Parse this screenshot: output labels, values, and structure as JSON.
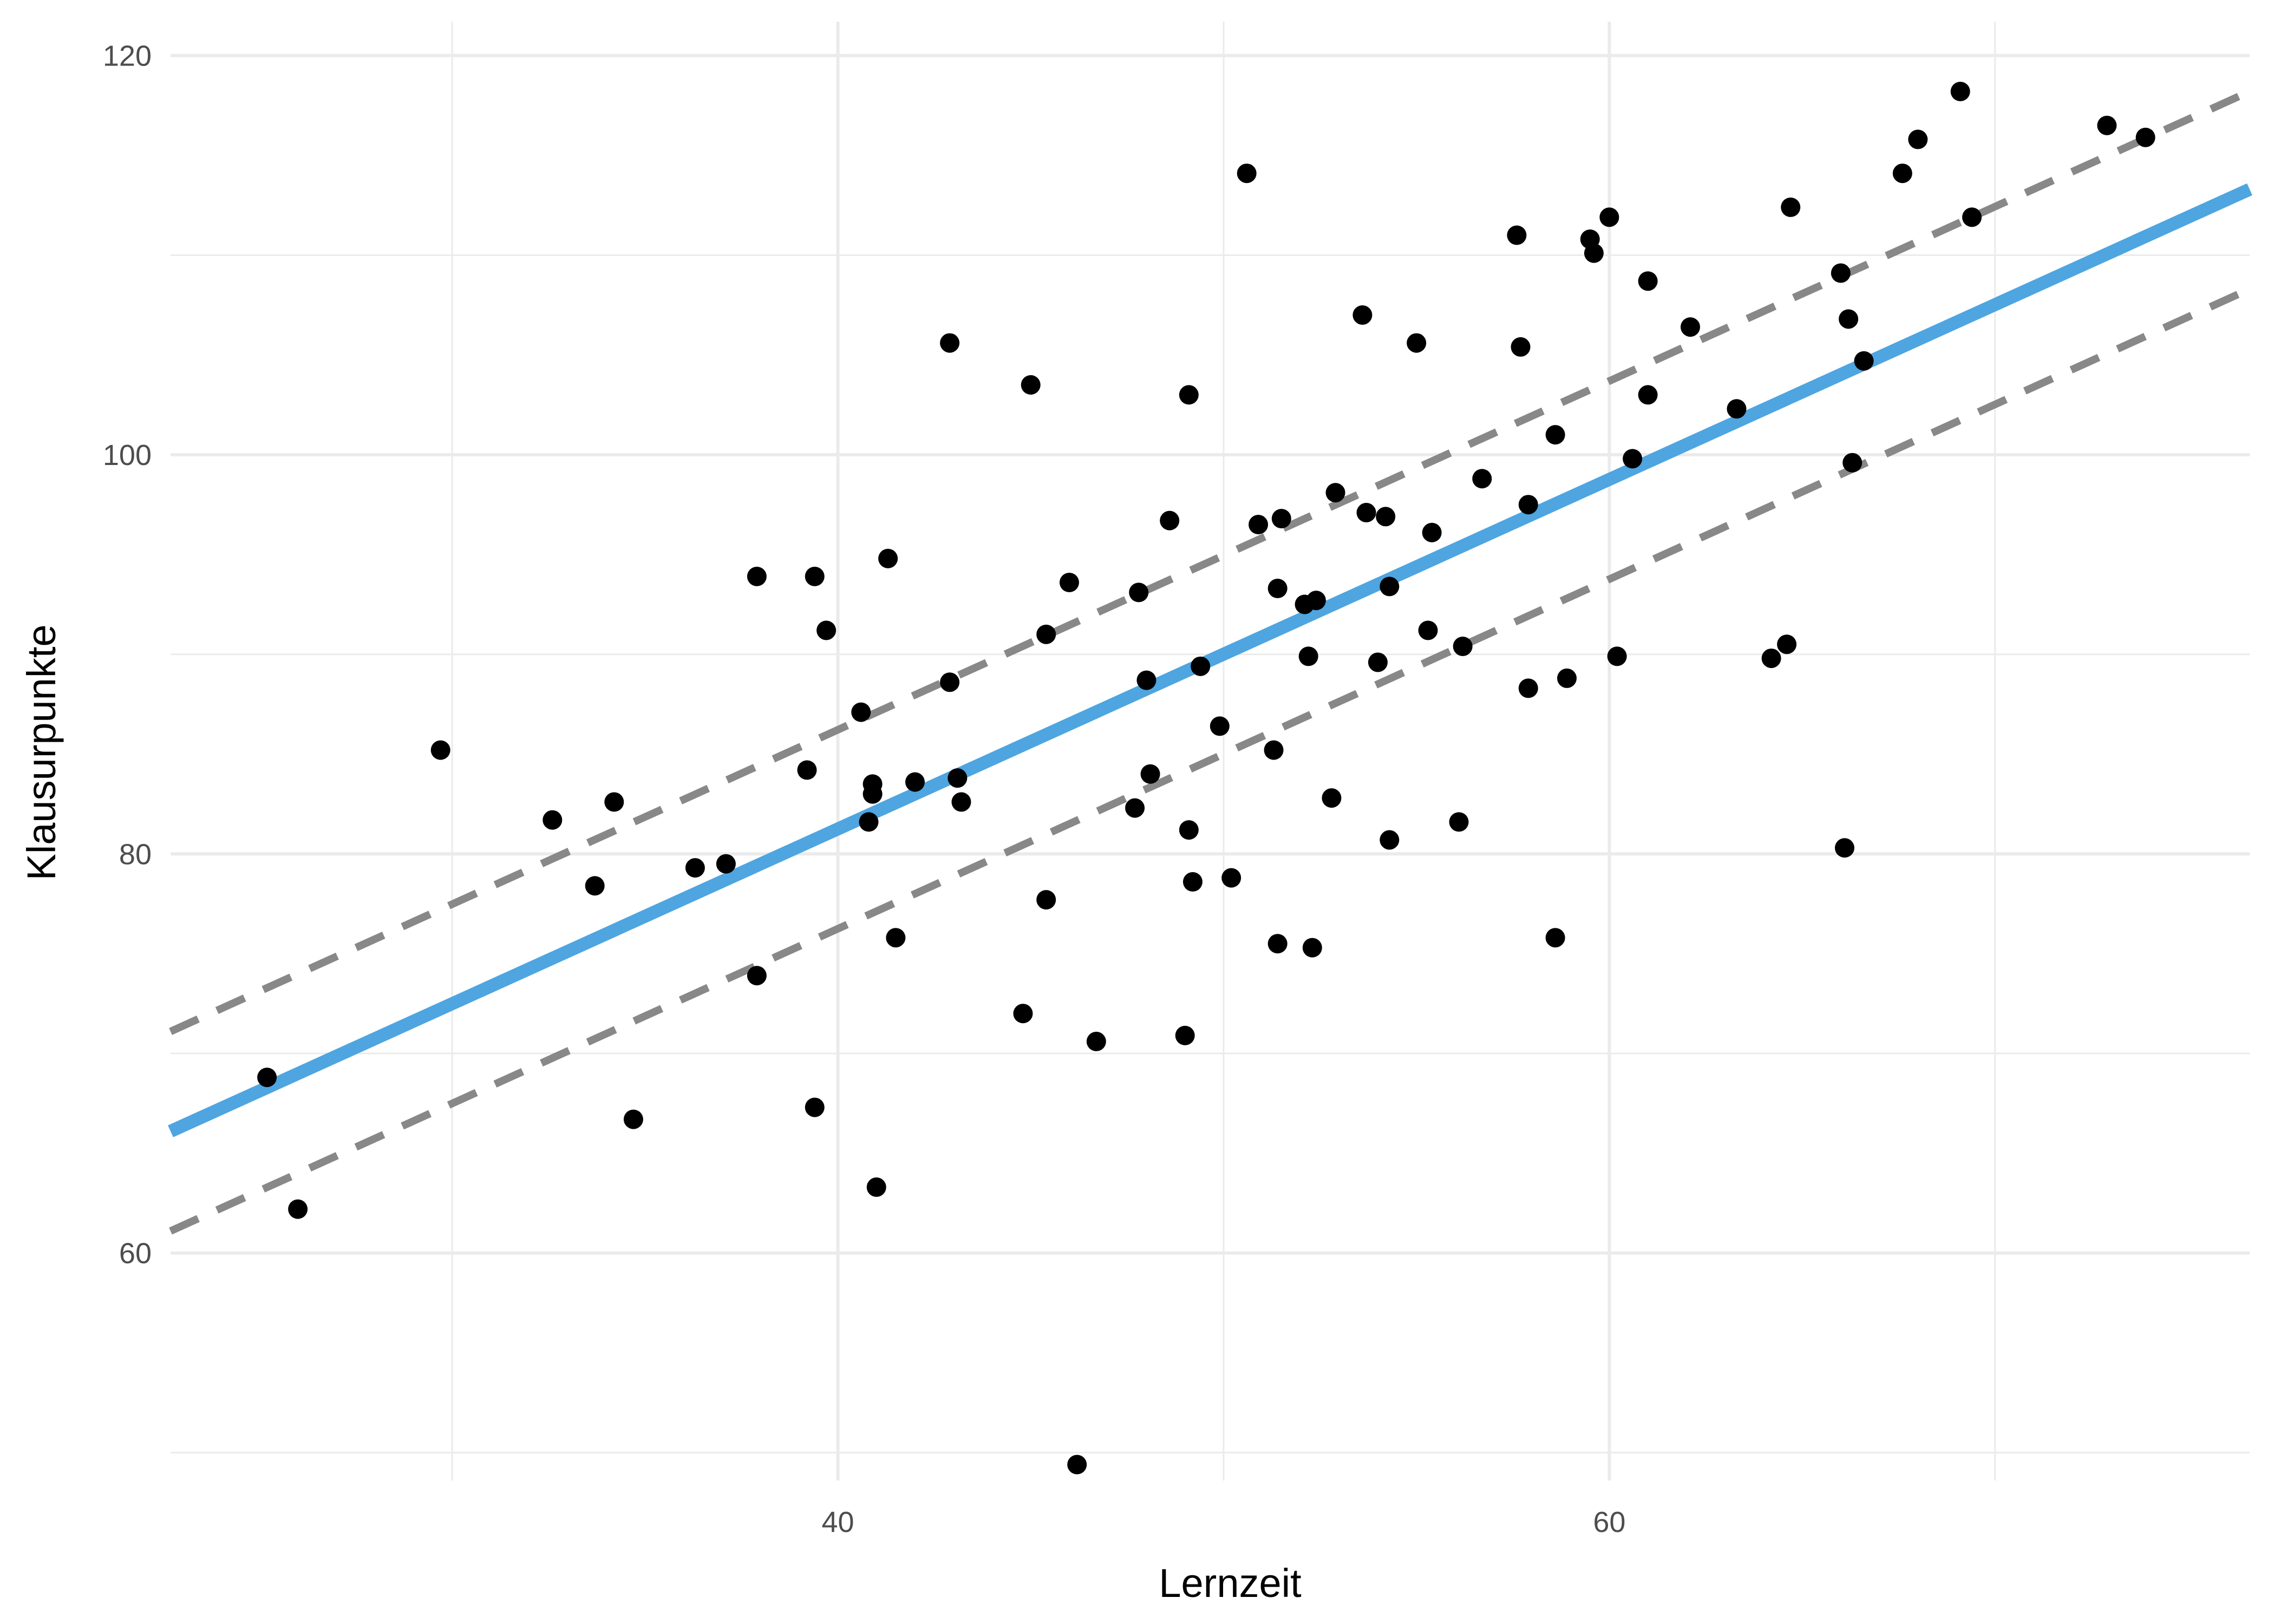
{
  "chart_data": {
    "type": "scatter",
    "title": "",
    "xlabel": "Lernzeit",
    "ylabel": "Klausurpunkte",
    "xlim": [
      22.7,
      76.6
    ],
    "ylim": [
      48.6,
      121.7
    ],
    "x_ticks": [
      40,
      60
    ],
    "x_minor_ticks": [
      30,
      50,
      70
    ],
    "y_ticks": [
      60,
      80,
      100,
      120
    ],
    "y_minor_ticks": [
      50,
      70,
      90,
      110
    ],
    "grid": true,
    "legend": "none",
    "colors": {
      "points": "#000000",
      "fit_line": "#4ea5e0",
      "interval_lines": "#888888"
    },
    "fit_line": {
      "style": "solid",
      "x": [
        22.7,
        76.6
      ],
      "y": [
        66.1,
        113.3
      ]
    },
    "interval_lines": [
      {
        "style": "dashed",
        "x": [
          22.7,
          76.6
        ],
        "y": [
          71.1,
          118.2
        ]
      },
      {
        "style": "dashed",
        "x": [
          22.7,
          76.6
        ],
        "y": [
          61.1,
          108.3
        ]
      }
    ],
    "points": [
      {
        "x": 25.2,
        "y": 68.8
      },
      {
        "x": 26.0,
        "y": 62.2
      },
      {
        "x": 29.7,
        "y": 85.2
      },
      {
        "x": 32.6,
        "y": 81.7
      },
      {
        "x": 33.7,
        "y": 78.4
      },
      {
        "x": 34.2,
        "y": 82.6
      },
      {
        "x": 34.7,
        "y": 66.7
      },
      {
        "x": 36.3,
        "y": 79.3
      },
      {
        "x": 37.1,
        "y": 79.5
      },
      {
        "x": 37.9,
        "y": 73.9
      },
      {
        "x": 37.9,
        "y": 93.9
      },
      {
        "x": 39.2,
        "y": 84.2
      },
      {
        "x": 39.4,
        "y": 93.9
      },
      {
        "x": 39.4,
        "y": 67.3
      },
      {
        "x": 39.7,
        "y": 91.2
      },
      {
        "x": 40.6,
        "y": 87.1
      },
      {
        "x": 40.8,
        "y": 81.6
      },
      {
        "x": 40.9,
        "y": 83.5
      },
      {
        "x": 40.9,
        "y": 83.0
      },
      {
        "x": 41.0,
        "y": 63.3
      },
      {
        "x": 41.3,
        "y": 94.8
      },
      {
        "x": 41.5,
        "y": 75.8
      },
      {
        "x": 42.0,
        "y": 83.6
      },
      {
        "x": 42.9,
        "y": 88.6
      },
      {
        "x": 42.9,
        "y": 105.6
      },
      {
        "x": 43.1,
        "y": 83.8
      },
      {
        "x": 43.2,
        "y": 82.6
      },
      {
        "x": 44.8,
        "y": 72.0
      },
      {
        "x": 45.0,
        "y": 103.5
      },
      {
        "x": 45.4,
        "y": 91.0
      },
      {
        "x": 45.4,
        "y": 77.7
      },
      {
        "x": 46.0,
        "y": 93.6
      },
      {
        "x": 46.2,
        "y": 49.4
      },
      {
        "x": 46.7,
        "y": 70.6
      },
      {
        "x": 47.7,
        "y": 82.3
      },
      {
        "x": 47.8,
        "y": 93.1
      },
      {
        "x": 48.0,
        "y": 88.7
      },
      {
        "x": 48.1,
        "y": 84.0
      },
      {
        "x": 48.6,
        "y": 96.7
      },
      {
        "x": 49.0,
        "y": 70.9
      },
      {
        "x": 49.1,
        "y": 81.2
      },
      {
        "x": 49.1,
        "y": 103.0
      },
      {
        "x": 49.2,
        "y": 78.6
      },
      {
        "x": 49.4,
        "y": 89.4
      },
      {
        "x": 49.9,
        "y": 86.4
      },
      {
        "x": 50.2,
        "y": 78.8
      },
      {
        "x": 50.6,
        "y": 114.1
      },
      {
        "x": 50.9,
        "y": 96.5
      },
      {
        "x": 51.3,
        "y": 85.2
      },
      {
        "x": 51.4,
        "y": 93.3
      },
      {
        "x": 51.4,
        "y": 75.5
      },
      {
        "x": 51.5,
        "y": 96.8
      },
      {
        "x": 52.1,
        "y": 92.5
      },
      {
        "x": 52.2,
        "y": 89.9
      },
      {
        "x": 52.3,
        "y": 75.3
      },
      {
        "x": 52.4,
        "y": 92.7
      },
      {
        "x": 52.8,
        "y": 82.8
      },
      {
        "x": 52.9,
        "y": 98.1
      },
      {
        "x": 53.6,
        "y": 107.0
      },
      {
        "x": 53.7,
        "y": 97.1
      },
      {
        "x": 54.0,
        "y": 89.6
      },
      {
        "x": 54.2,
        "y": 96.9
      },
      {
        "x": 54.3,
        "y": 93.4
      },
      {
        "x": 54.3,
        "y": 80.7
      },
      {
        "x": 55.0,
        "y": 105.6
      },
      {
        "x": 55.3,
        "y": 91.2
      },
      {
        "x": 55.4,
        "y": 96.1
      },
      {
        "x": 56.1,
        "y": 81.6
      },
      {
        "x": 56.2,
        "y": 90.4
      },
      {
        "x": 56.7,
        "y": 98.8
      },
      {
        "x": 57.6,
        "y": 111.0
      },
      {
        "x": 57.7,
        "y": 105.4
      },
      {
        "x": 57.9,
        "y": 97.5
      },
      {
        "x": 57.9,
        "y": 88.3
      },
      {
        "x": 58.6,
        "y": 101.0
      },
      {
        "x": 58.6,
        "y": 75.8
      },
      {
        "x": 58.9,
        "y": 88.8
      },
      {
        "x": 59.5,
        "y": 110.8
      },
      {
        "x": 59.6,
        "y": 110.1
      },
      {
        "x": 60.0,
        "y": 111.9
      },
      {
        "x": 60.2,
        "y": 89.9
      },
      {
        "x": 60.6,
        "y": 99.8
      },
      {
        "x": 61.0,
        "y": 108.7
      },
      {
        "x": 61.0,
        "y": 103.0
      },
      {
        "x": 62.1,
        "y": 106.4
      },
      {
        "x": 63.3,
        "y": 102.3
      },
      {
        "x": 64.2,
        "y": 89.8
      },
      {
        "x": 64.6,
        "y": 90.5
      },
      {
        "x": 64.7,
        "y": 112.4
      },
      {
        "x": 66.0,
        "y": 109.1
      },
      {
        "x": 66.1,
        "y": 80.3
      },
      {
        "x": 66.2,
        "y": 106.8
      },
      {
        "x": 66.3,
        "y": 99.6
      },
      {
        "x": 66.6,
        "y": 104.7
      },
      {
        "x": 67.6,
        "y": 114.1
      },
      {
        "x": 68.0,
        "y": 115.8
      },
      {
        "x": 69.1,
        "y": 118.2
      },
      {
        "x": 69.4,
        "y": 111.9
      },
      {
        "x": 72.9,
        "y": 116.5
      },
      {
        "x": 73.9,
        "y": 115.9
      }
    ]
  }
}
